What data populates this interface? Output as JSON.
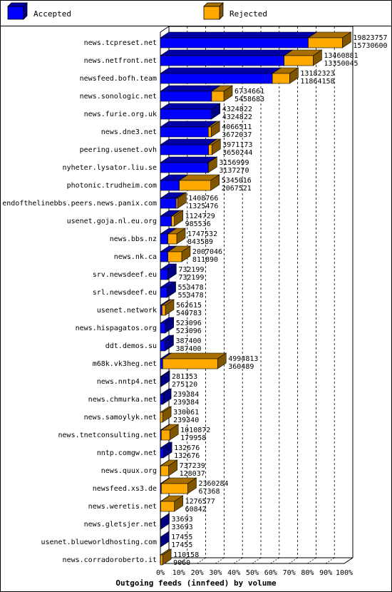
{
  "chart_data": {
    "type": "bar",
    "orientation": "horizontal",
    "stacked": true,
    "title": "Outgoing feeds (innfeed) by volume",
    "xlabel": "Outgoing feeds (innfeed) by volume",
    "xlim": [
      0,
      100
    ],
    "x_unit": "percent",
    "x_tick_labels": [
      "0%",
      "10%",
      "20%",
      "30%",
      "40%",
      "50%",
      "60%",
      "70%",
      "80%",
      "90%",
      "100%"
    ],
    "grid": true,
    "legend_position": "top",
    "legend": [
      {
        "label": "Accepted",
        "color": "#0000ff"
      },
      {
        "label": "Rejected",
        "color": "#ffaa00"
      }
    ],
    "categories": [
      "news.tcpreset.net",
      "news.netfront.net",
      "newsfeed.bofh.team",
      "news.sonologic.net",
      "news.furie.org.uk",
      "news.dne3.net",
      "peering.usenet.ovh",
      "nyheter.lysator.liu.se",
      "photonic.trudheim.com",
      "endofthelinebbs.peers.news.panix.com",
      "usenet.goja.nl.eu.org",
      "news.bbs.nz",
      "news.nk.ca",
      "srv.newsdeef.eu",
      "srl.newsdeef.eu",
      "usenet.network",
      "news.hispagatos.org",
      "ddt.demos.su",
      "m68k.vk3heg.net",
      "news.nntp4.net",
      "news.chmurka.net",
      "news.samoylyk.net",
      "news.tnetconsulting.net",
      "nntp.comgw.net",
      "news.quux.org",
      "newsfeed.xs3.de",
      "news.weretis.net",
      "news.gletsjer.net",
      "usenet.blueworldhosting.com",
      "news.corradoroberto.it"
    ],
    "labels_top": [
      "19823757",
      "13460881",
      "13182323",
      "6734661",
      "4324822",
      "4066511",
      "3971173",
      "3156999",
      "5345016",
      "1408766",
      "1124729",
      "1747532",
      "2007046",
      "732199",
      "553478",
      "562615",
      "523096",
      "387400",
      "4994813",
      "281353",
      "239384",
      "330061",
      "1010872",
      "132676",
      "737239",
      "2360284",
      "1276577",
      "33693",
      "17455",
      "110158"
    ],
    "labels_bottom": [
      "15730600",
      "13350045",
      "11864158",
      "5458683",
      "4324822",
      "3672037",
      "3650244",
      "3137270",
      "2067521",
      "1325476",
      "985536",
      "843589",
      "811890",
      "732199",
      "553478",
      "540783",
      "523096",
      "387400",
      "360489",
      "275120",
      "239384",
      "239340",
      "179958",
      "132676",
      "128037",
      "67368",
      "60842",
      "33693",
      "17455",
      "9060"
    ],
    "series": [
      {
        "name": "Accepted",
        "color": "#0000ff",
        "values": [
          80.4,
          67.3,
          60.9,
          27.9,
          27.8,
          26.1,
          26.2,
          26.0,
          10.3,
          8.6,
          6.1,
          4.1,
          4.1,
          4.0,
          3.7,
          0.9,
          2.6,
          2.5,
          1.3,
          0.4,
          1.2,
          0.0,
          0.5,
          1.6,
          0.2,
          0.5,
          0.2,
          0.2,
          0.1,
          0.1
        ]
      },
      {
        "name": "Rejected",
        "color": "#ffaa00",
        "values": [
          18.6,
          15.8,
          9.4,
          6.6,
          0.0,
          1.5,
          1.8,
          0.1,
          17.1,
          0.8,
          1.5,
          4.8,
          7.5,
          0.0,
          0.0,
          1.8,
          0.0,
          0.0,
          29.8,
          0.0,
          0.0,
          1.2,
          4.6,
          0.0,
          4.3,
          14.4,
          7.4,
          0.0,
          0.0,
          1.1
        ]
      }
    ]
  }
}
